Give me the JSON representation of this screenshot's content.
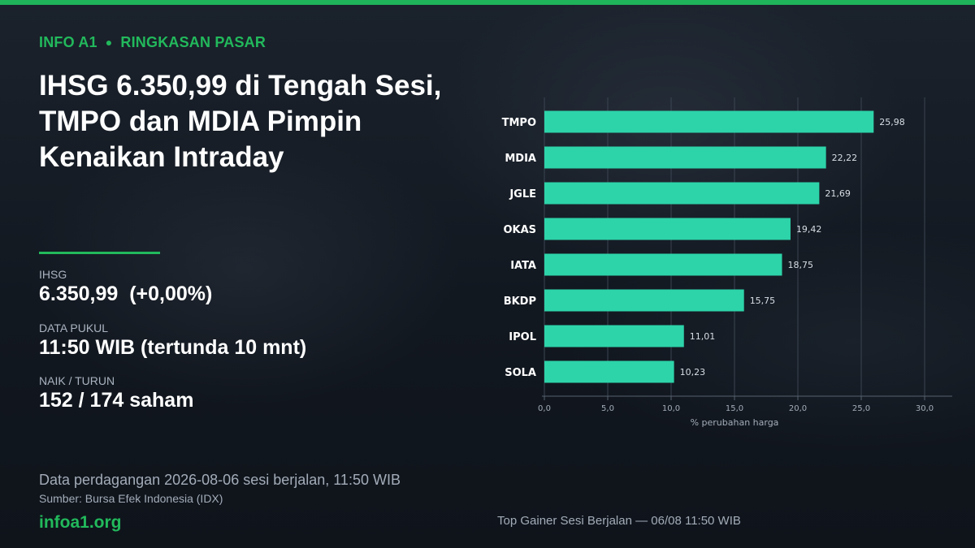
{
  "kicker": {
    "left": "INFO A1",
    "right": "RINGKASAN PASAR"
  },
  "headline": "IHSG 6.350,99 di Tengah Sesi, TMPO dan MDIA Pimpin Kenaikan Intraday",
  "stats": {
    "ihsg_label": "IHSG",
    "ihsg_value": "6.350,99  (+0,00%)",
    "time_label": "DATA PUKUL",
    "time_value": "11:50 WIB (tertunda 10 mnt)",
    "breadth_label": "NAIK / TURUN",
    "breadth_value": "152 / 174 saham"
  },
  "footer": {
    "note": "Data perdagangan 2026-08-06 sesi berjalan, 11:50 WIB",
    "source": "Sumber: Bursa Efek Indonesia (IDX)",
    "brand": "infoa1.org"
  },
  "colors": {
    "accent": "#22b95c",
    "bar": "#2dd4aa",
    "grid": "#3a4452"
  },
  "chart_data": {
    "type": "bar",
    "orientation": "horizontal",
    "categories": [
      "TMPO",
      "MDIA",
      "JGLE",
      "OKAS",
      "IATA",
      "BKDP",
      "IPOL",
      "SOLA"
    ],
    "values": [
      25.98,
      22.22,
      21.69,
      19.42,
      18.75,
      15.75,
      11.01,
      10.23
    ],
    "value_labels": [
      "25,98",
      "22,22",
      "21,69",
      "19,42",
      "18,75",
      "15,75",
      "11,01",
      "10,23"
    ],
    "xlim": [
      0,
      30
    ],
    "xticks": [
      0,
      5,
      10,
      15,
      20,
      25,
      30
    ],
    "xtick_labels": [
      "0,0",
      "5,0",
      "10,0",
      "15,0",
      "20,0",
      "25,0",
      "30,0"
    ],
    "xlabel": "% perubahan harga",
    "ylabel": "",
    "grid": "vertical",
    "caption": "Top Gainer Sesi Berjalan — 06/08 11:50 WIB"
  }
}
